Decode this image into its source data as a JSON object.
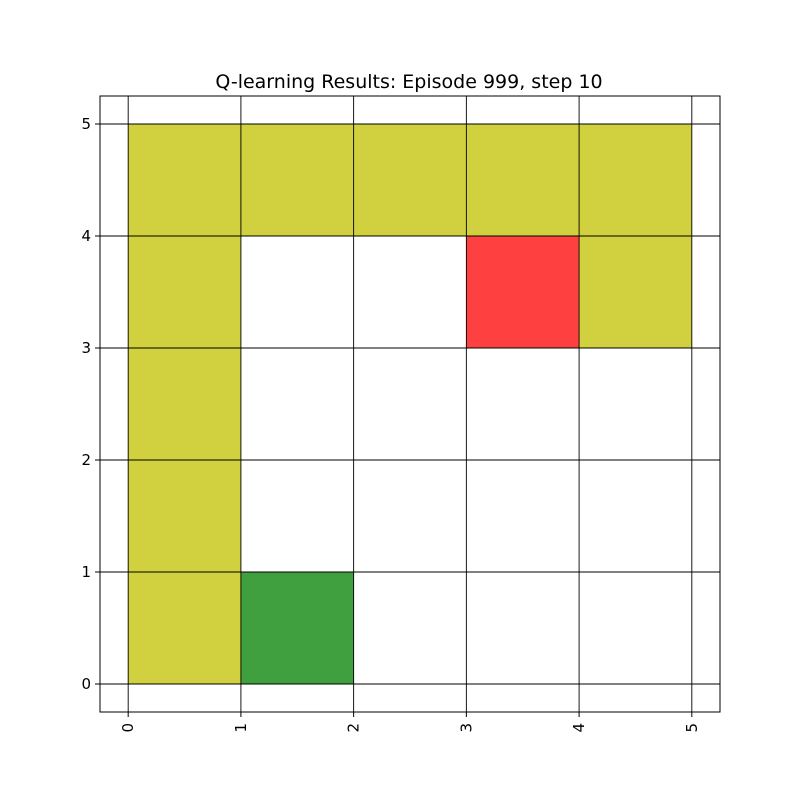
{
  "chart_data": {
    "type": "heatmap",
    "title": "Q-learning Results: Episode 999, step 10",
    "xlabel": "",
    "ylabel": "",
    "xlim": [
      -0.25,
      5.25
    ],
    "ylim": [
      -0.25,
      5.25
    ],
    "x_ticks": [
      "0",
      "1",
      "2",
      "3",
      "4",
      "5"
    ],
    "y_ticks": [
      "0",
      "1",
      "2",
      "3",
      "4",
      "5"
    ],
    "grid": true,
    "colors": {
      "path": "#d1d13f",
      "goal": "#ff4040",
      "start": "#40a040"
    },
    "cells": [
      {
        "x": 0,
        "y": 0,
        "kind": "path"
      },
      {
        "x": 0,
        "y": 1,
        "kind": "path"
      },
      {
        "x": 0,
        "y": 2,
        "kind": "path"
      },
      {
        "x": 0,
        "y": 3,
        "kind": "path"
      },
      {
        "x": 0,
        "y": 4,
        "kind": "path"
      },
      {
        "x": 1,
        "y": 4,
        "kind": "path"
      },
      {
        "x": 2,
        "y": 4,
        "kind": "path"
      },
      {
        "x": 3,
        "y": 4,
        "kind": "path"
      },
      {
        "x": 4,
        "y": 4,
        "kind": "path"
      },
      {
        "x": 4,
        "y": 3,
        "kind": "path"
      },
      {
        "x": 3,
        "y": 3,
        "kind": "goal"
      },
      {
        "x": 1,
        "y": 0,
        "kind": "start"
      }
    ]
  }
}
